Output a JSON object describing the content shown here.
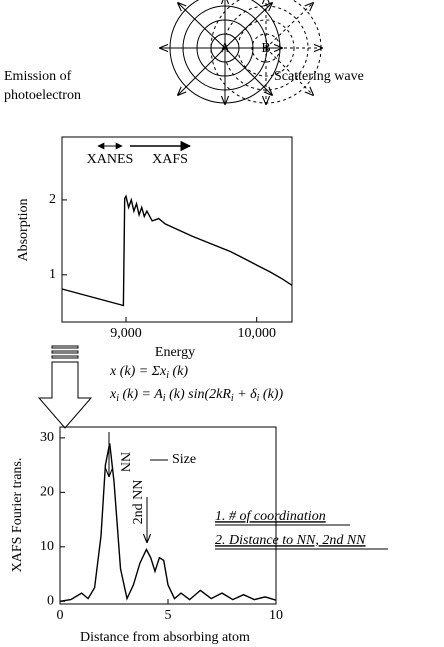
{
  "diagram": {
    "label_a": "A",
    "label_b": "B",
    "emission": [
      "Emission of",
      "photoelectron"
    ],
    "scattering": "Scattering wave"
  },
  "equations": [
    [
      "x (k) = Σx",
      "i",
      " (k)"
    ],
    [
      "x",
      "i",
      " (k) = A",
      "i",
      " (k) sin(2kR",
      "i",
      " + δ",
      "i",
      " (k))"
    ]
  ],
  "chart_data": [
    {
      "type": "line",
      "xlabel": "Energy",
      "ylabel": "Absorption",
      "annotations": [
        "XANES",
        "XAFS"
      ],
      "color": "#000000",
      "x": [
        8510,
        8980,
        8990,
        9000,
        9020,
        9040,
        9060,
        9080,
        9100,
        9120,
        9140,
        9160,
        9200,
        9250,
        9300,
        9400,
        9500,
        9600,
        9700,
        9800,
        9900,
        10000,
        10100,
        10200,
        10270
      ],
      "values": [
        0.81,
        0.59,
        2.02,
        2.05,
        1.9,
        2.0,
        1.85,
        1.95,
        1.8,
        1.9,
        1.78,
        1.85,
        1.72,
        1.75,
        1.68,
        1.6,
        1.52,
        1.45,
        1.38,
        1.31,
        1.22,
        1.13,
        1.04,
        0.94,
        0.86
      ],
      "xlim": [
        8510,
        10270
      ],
      "ylim": [
        0.37,
        2.84
      ],
      "xticks": [
        {
          "value": 9000,
          "label": "9,000"
        },
        {
          "value": 10000,
          "label": "10,000"
        }
      ],
      "yticks": [
        1,
        2
      ]
    },
    {
      "type": "line",
      "xlabel": "Distance from absorbing atom",
      "ylabel": "XAFS Fourier trans.",
      "annotations": [
        "NN",
        "2nd NN",
        "1. # of coordination",
        "2. Distance to NN, 2nd NN"
      ],
      "x": [
        0,
        0.5,
        1,
        1.3,
        1.6,
        1.9,
        2.1,
        2.3,
        2.5,
        2.8,
        3.1,
        3.4,
        3.7,
        4.0,
        4.2,
        4.4,
        4.6,
        4.8,
        5.0,
        5.3,
        5.6,
        6.0,
        6.5,
        7,
        7.5,
        8,
        8.5,
        9,
        9.5,
        10
      ],
      "series": [
        {
          "name": "Size",
          "color": "#000000",
          "values": [
            0,
            0.3,
            1.5,
            0.5,
            2.5,
            12,
            25,
            29,
            22,
            6,
            0.5,
            3,
            7,
            9.5,
            8,
            5.5,
            8,
            7.5,
            3,
            0.5,
            1.5,
            0.3,
            2,
            0.5,
            1.5,
            0.3,
            1.2,
            0.3,
            0.8,
            0.2
          ]
        }
      ],
      "xlim": [
        0,
        10
      ],
      "ylim": [
        -0.5,
        32
      ],
      "xticks": [
        0,
        5,
        10
      ],
      "yticks": [
        0,
        10,
        20,
        30
      ]
    }
  ]
}
